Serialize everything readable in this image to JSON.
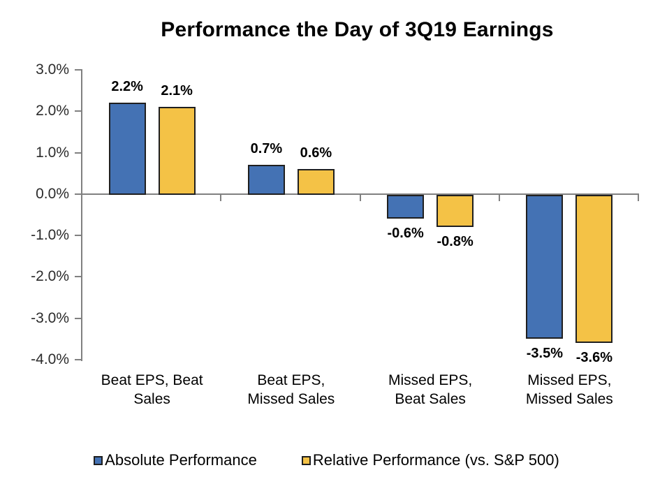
{
  "chart_data": {
    "type": "bar",
    "title": "Performance the Day of 3Q19 Earnings",
    "xlabel": "",
    "ylabel": "",
    "ylim": [
      -4,
      3
    ],
    "grid": false,
    "legend_position": "bottom",
    "categories": [
      "Beat EPS, Beat\nSales",
      "Beat EPS,\nMissed Sales",
      "Missed EPS,\nBeat Sales",
      "Missed EPS,\nMissed Sales"
    ],
    "series": [
      {
        "name": "Absolute Performance",
        "color": "#4472b4",
        "values": [
          2.2,
          0.7,
          -0.6,
          -3.5
        ],
        "labels": [
          "2.2%",
          "0.7%",
          "-0.6%",
          "-3.5%"
        ]
      },
      {
        "name": "Relative Performance (vs. S&P 500)",
        "color": "#f4c246",
        "values": [
          2.1,
          0.6,
          -0.8,
          -3.6
        ],
        "labels": [
          "2.1%",
          "0.6%",
          "-0.8%",
          "-3.6%"
        ]
      }
    ],
    "yticks": [
      {
        "value": 3,
        "label": "3.0%"
      },
      {
        "value": 2,
        "label": "2.0%"
      },
      {
        "value": 1,
        "label": "1.0%"
      },
      {
        "value": 0,
        "label": "0.0%"
      },
      {
        "value": -1,
        "label": "-1.0%"
      },
      {
        "value": -2,
        "label": "-2.0%"
      },
      {
        "value": -3,
        "label": "-3.0%"
      },
      {
        "value": -4,
        "label": "-4.0%"
      }
    ],
    "colors": {
      "axis": "#808080",
      "bar_border": "#1f1f1f",
      "text": "#000000"
    }
  }
}
